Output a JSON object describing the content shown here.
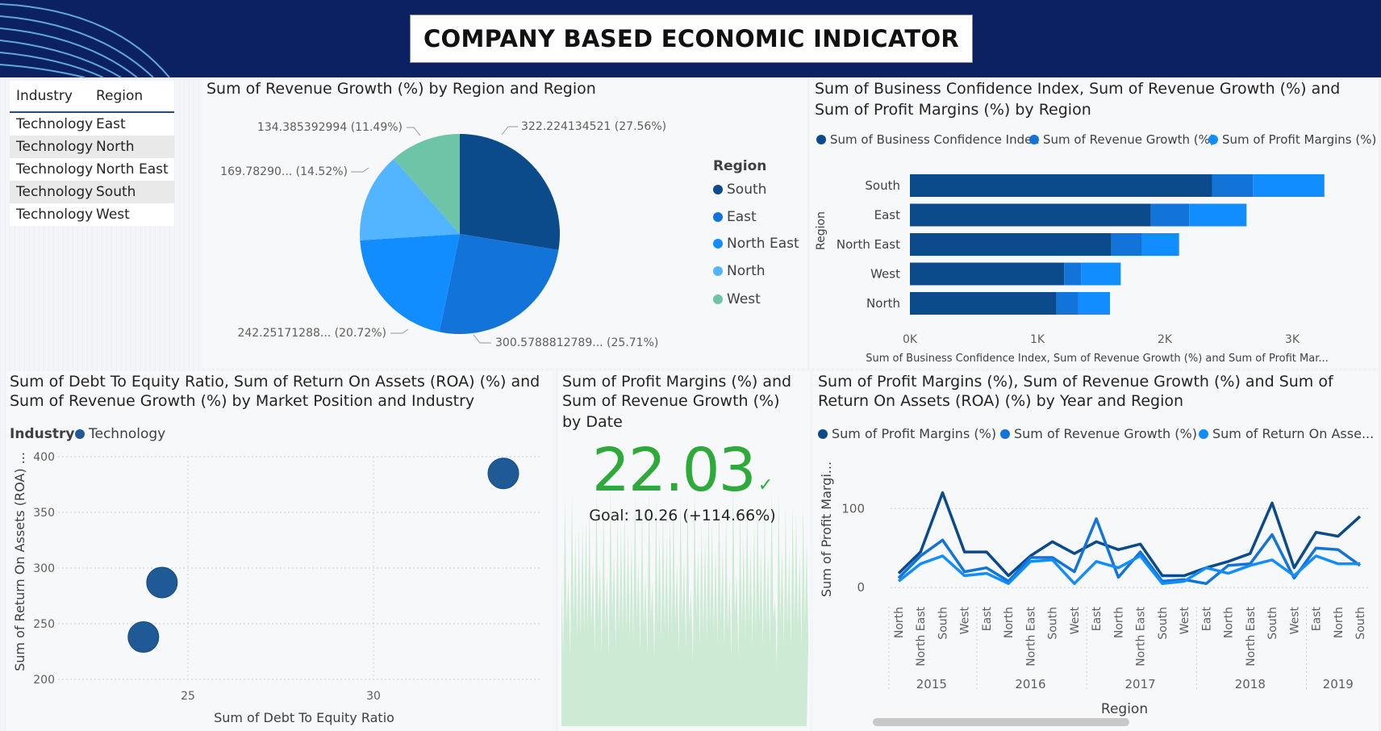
{
  "header": {
    "title": "COMPANY BASED ECONOMIC INDICATOR"
  },
  "table": {
    "columns": [
      "Industry",
      "Region"
    ],
    "rows": [
      [
        "Technology",
        "East"
      ],
      [
        "Technology",
        "North"
      ],
      [
        "Technology",
        "North East"
      ],
      [
        "Technology",
        "South"
      ],
      [
        "Technology",
        "West"
      ]
    ]
  },
  "pie": {
    "title": "Sum of Revenue Growth (%) by Region and Region",
    "legend_title": "Region",
    "legend": [
      "South",
      "East",
      "North East",
      "North",
      "West"
    ],
    "labels": {
      "south": "322.224134521 (27.56%)",
      "east": "300.5788812789... (25.71%)",
      "northeast": "242.25171288... (20.72%)",
      "north": "169.78290... (14.52%)",
      "west": "134.385392994 (11.49%)"
    },
    "colors": [
      "#0b4a8b",
      "#1274d8",
      "#118dff",
      "#53b4ff",
      "#6ec4a6"
    ],
    "chart_data": {
      "type": "pie",
      "categories": [
        "South",
        "East",
        "North East",
        "North",
        "West"
      ],
      "values": [
        322.224134521,
        300.5788812789,
        242.25171288,
        169.7829,
        134.385392994
      ],
      "percent": [
        27.56,
        25.71,
        20.72,
        14.52,
        11.49
      ]
    }
  },
  "bar": {
    "title_line1": "Sum of Business Confidence Index, Sum of Revenue Growth (%) and",
    "title_line2": "Sum of Profit Margins (%) by Region",
    "legend": [
      "Sum of Business Confidence Index",
      "Sum of Revenue Growth (%)",
      "Sum of Profit Margins (%)"
    ],
    "ylabel": "Region",
    "xlabel": "Sum of Business Confidence Index, Sum of Revenue Growth (%) and Sum of Profit Mar...",
    "ticks": [
      "0K",
      "1K",
      "2K",
      "3K"
    ],
    "colors": [
      "#0b4a8b",
      "#1274d8",
      "#118dff"
    ],
    "chart_data": {
      "type": "bar",
      "orientation": "horizontal",
      "stacked": true,
      "categories": [
        "South",
        "East",
        "North East",
        "West",
        "North"
      ],
      "series": [
        {
          "name": "Sum of Business Confidence Index",
          "values": [
            2370,
            1890,
            1580,
            1210,
            1150
          ]
        },
        {
          "name": "Sum of Revenue Growth (%)",
          "values": [
            322,
            301,
            242,
            134,
            170
          ]
        },
        {
          "name": "Sum of Profit Margins (%)",
          "values": [
            560,
            450,
            290,
            310,
            250
          ]
        }
      ],
      "xlim": [
        0,
        3300
      ]
    }
  },
  "scatter": {
    "title_line1": "Sum of Debt To Equity Ratio, Sum of Return On Assets (ROA) (%) and",
    "title_line2": "Sum of Revenue Growth (%) by Market Position and Industry",
    "legend_title": "Industry",
    "legend": [
      "Technology"
    ],
    "xlabel": "Sum of Debt To Equity Ratio",
    "ylabel": "Sum of Return On Assets (ROA) ...",
    "yticks": [
      "400",
      "350",
      "300",
      "250",
      "200"
    ],
    "xticks": [
      "25",
      "30"
    ],
    "color": "#1f5a96",
    "chart_data": {
      "type": "scatter",
      "points": [
        {
          "x": 23.8,
          "y": 238
        },
        {
          "x": 24.3,
          "y": 287
        },
        {
          "x": 33.5,
          "y": 385
        }
      ],
      "xlim": [
        21.5,
        34.5
      ],
      "ylim": [
        200,
        400
      ]
    }
  },
  "kpi": {
    "title_line1": "Sum of Profit Margins (%) and",
    "title_line2": "Sum of Revenue Growth (%)",
    "title_line3": "by Date",
    "value": "22.03",
    "goal": "Goal: 10.26 (+114.66%)",
    "check": "✓",
    "color": "#2eaa3a"
  },
  "line": {
    "title_line1": "Sum of Profit Margins (%), Sum of Revenue Growth (%) and Sum of",
    "title_line2": "Return On Assets (ROA) (%) by Year and Region",
    "legend": [
      "Sum of Profit Margins (%)",
      "Sum of Revenue Growth (%)",
      "Sum of Return On Asse..."
    ],
    "ylabel": "Sum of Profit Margi...",
    "xlabel": "Region",
    "yticks": [
      "100",
      "0"
    ],
    "years": [
      "2015",
      "2016",
      "2017",
      "2018",
      "2019"
    ],
    "colors": [
      "#0b4a8b",
      "#1274d8",
      "#118dff"
    ],
    "chart_data": {
      "type": "line",
      "x": [
        "North",
        "North East",
        "South",
        "West",
        "East",
        "North",
        "North East",
        "South",
        "West",
        "East",
        "North",
        "North East",
        "South",
        "West",
        "East",
        "North",
        "North East",
        "South",
        "West",
        "East",
        "North",
        "South"
      ],
      "x_years": [
        "2015",
        "2015",
        "2015",
        "2015",
        "2016",
        "2016",
        "2016",
        "2016",
        "2016",
        "2017",
        "2017",
        "2017",
        "2017",
        "2017",
        "2018",
        "2018",
        "2018",
        "2018",
        "2018",
        "2019",
        "2019",
        "2019"
      ],
      "series": [
        {
          "name": "Sum of Profit Margins (%)",
          "values": [
            18,
            45,
            120,
            45,
            45,
            15,
            40,
            58,
            43,
            58,
            48,
            55,
            15,
            15,
            25,
            33,
            43,
            107,
            25,
            70,
            65,
            90
          ]
        },
        {
          "name": "Sum of Revenue Growth (%)",
          "values": [
            12,
            40,
            60,
            20,
            25,
            8,
            38,
            38,
            20,
            87,
            13,
            45,
            8,
            10,
            5,
            28,
            30,
            67,
            12,
            50,
            48,
            28
          ]
        },
        {
          "name": "Sum of Return On Asse...",
          "values": [
            8,
            30,
            40,
            15,
            18,
            5,
            33,
            35,
            5,
            33,
            25,
            40,
            5,
            8,
            25,
            18,
            28,
            35,
            15,
            40,
            30,
            30
          ]
        }
      ],
      "ylim": [
        -10,
        135
      ]
    }
  }
}
